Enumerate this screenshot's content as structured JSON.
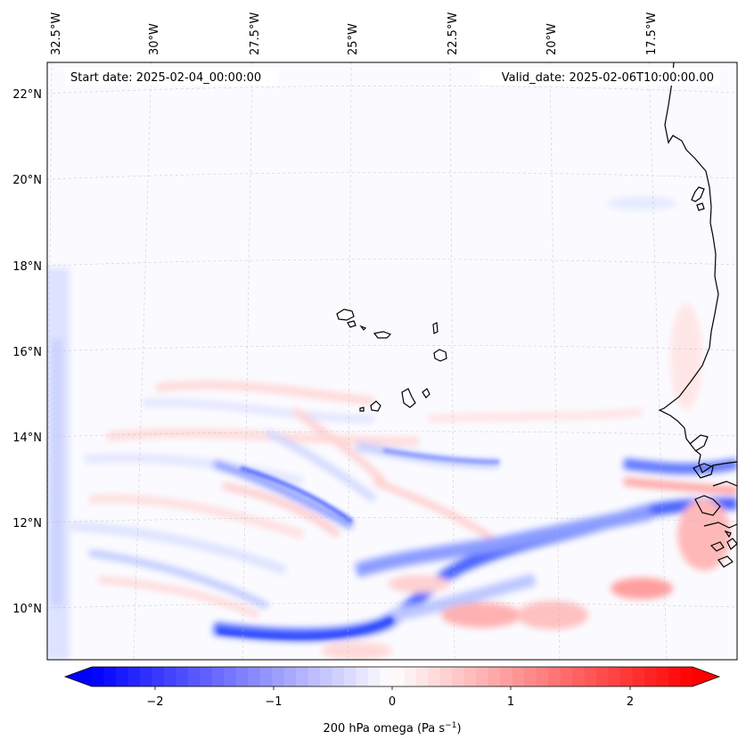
{
  "map": {
    "start_date": "Start date: 2025-02-04_00:00:00",
    "valid_date": "Valid_date: 2025-02-06T10:00:00.00",
    "longitude_labels": [
      "32.5°W",
      "30°W",
      "27.5°W",
      "25°W",
      "22.5°W",
      "20°W",
      "17.5°W"
    ],
    "latitude_labels": [
      "22°N",
      "20°N",
      "18°N",
      "16°N",
      "14°N",
      "12°N",
      "10°N"
    ]
  },
  "colorbar": {
    "label": "200 hPa omega (Pa s",
    "label_superscript": "−1",
    "label_close": ")",
    "tick_labels": [
      "−2",
      "−1",
      "0",
      "1",
      "2"
    ],
    "range": [
      -2.5,
      2.5
    ],
    "colors": {
      "negative": "#0000ff",
      "zero": "#ffffff",
      "positive": "#ff0000"
    }
  }
}
